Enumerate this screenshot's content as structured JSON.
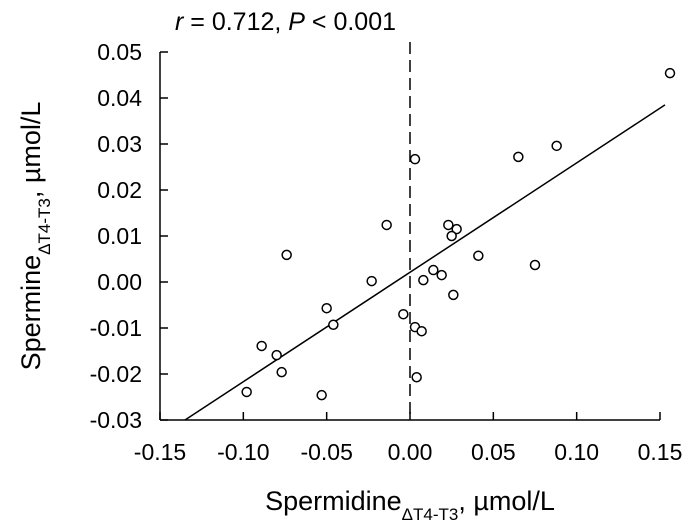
{
  "chart_data": {
    "type": "scatter",
    "title_parts": [
      {
        "text": "r",
        "italic": true
      },
      {
        "text": " = 0.712, ",
        "italic": false
      },
      {
        "text": "P",
        "italic": true
      },
      {
        "text": " < 0.001",
        "italic": false
      }
    ],
    "xlabel_parts": [
      {
        "text": "Spermidine",
        "sub": false
      },
      {
        "text": "ΔT4-T3",
        "sub": true
      },
      {
        "text": ", µmol/L",
        "sub": false
      }
    ],
    "ylabel_parts": [
      {
        "text": "Spermine",
        "sub": false
      },
      {
        "text": "ΔT4-T3",
        "sub": true
      },
      {
        "text": ", µmol/L",
        "sub": false
      }
    ],
    "xlim": [
      -0.15,
      0.15
    ],
    "ylim": [
      -0.03,
      0.05
    ],
    "xticks": [
      -0.15,
      {
        "value": -0.1,
        "label": "-0.10"
      },
      -0.05,
      {
        "value": 0,
        "label": "0.00"
      },
      0.05,
      {
        "value": 0.1,
        "label": "0.10"
      },
      0.15
    ],
    "yticks": [
      -0.03,
      -0.02,
      -0.01,
      {
        "value": 0,
        "label": "0.00"
      },
      0.01,
      0.02,
      0.03,
      0.04,
      0.05
    ],
    "reference_x": 0,
    "trend_line": {
      "x": [
        -0.135,
        0.153
      ],
      "y": [
        -0.03,
        0.0385
      ]
    },
    "series": [
      {
        "color": "#000000",
        "x": [
          0.156,
          0.088,
          0.065,
          0.003,
          -0.014,
          0.023,
          0.028,
          0.025,
          -0.074,
          0.041,
          0.075,
          -0.023,
          0.014,
          0.019,
          0.008,
          0.026,
          -0.05,
          -0.046,
          -0.004,
          0.003,
          0.007,
          -0.089,
          -0.08,
          -0.077,
          0.004,
          -0.098,
          -0.053
        ],
        "values": [
          0.0454,
          0.0296,
          0.0272,
          0.0267,
          0.0124,
          0.0124,
          0.0115,
          0.01,
          0.0059,
          0.0057,
          0.0037,
          0.0002,
          0.0026,
          0.0015,
          0.0004,
          -0.0028,
          -0.0057,
          -0.0093,
          -0.007,
          -0.0098,
          -0.0107,
          -0.0139,
          -0.0159,
          -0.0196,
          -0.0207,
          -0.0239,
          -0.0246
        ]
      }
    ]
  }
}
